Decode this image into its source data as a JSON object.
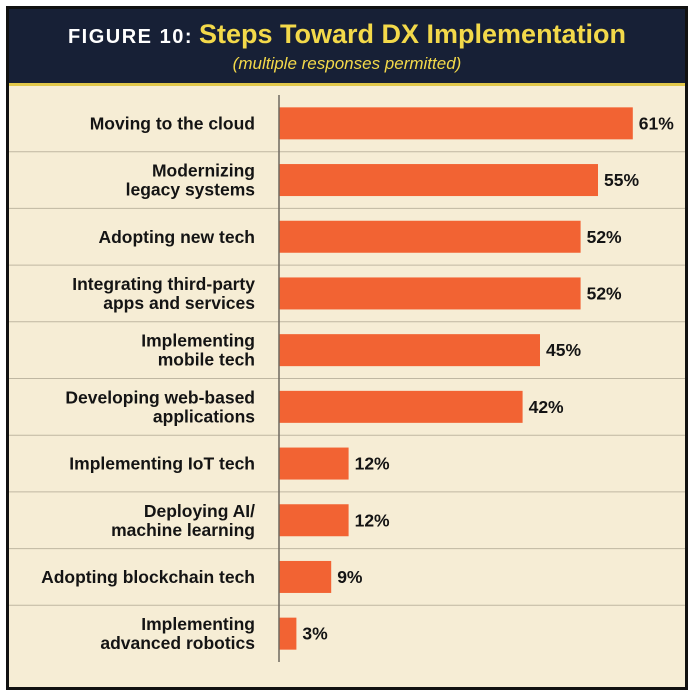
{
  "figure_label": "FIGURE 10:",
  "title": "Steps Toward DX Implementation",
  "subtitle": "(multiple responses permitted)",
  "chart_data": {
    "type": "bar",
    "orientation": "horizontal",
    "categories": [
      [
        "Moving to the cloud"
      ],
      [
        "Modernizing",
        "legacy systems"
      ],
      [
        "Adopting new tech"
      ],
      [
        "Integrating third-party",
        "apps and services"
      ],
      [
        "Implementing",
        "mobile tech"
      ],
      [
        "Developing web-based",
        "applications"
      ],
      [
        "Implementing IoT tech"
      ],
      [
        "Deploying AI/",
        "machine learning"
      ],
      [
        "Adopting blockchain tech"
      ],
      [
        "Implementing",
        "advanced robotics"
      ]
    ],
    "values": [
      61,
      55,
      52,
      52,
      45,
      42,
      12,
      12,
      9,
      3
    ],
    "value_labels": [
      "61%",
      "55%",
      "52%",
      "52%",
      "45%",
      "42%",
      "12%",
      "12%",
      "9%",
      "3%"
    ],
    "xlim": [
      0,
      100
    ],
    "grid": false,
    "legend": "none",
    "colors": {
      "bar": "#f26333",
      "background": "#f6edd5",
      "header": "#172036",
      "title": "#f3d94a",
      "row_divider": "#bfb7a2",
      "axis": "#6f6a60"
    }
  }
}
